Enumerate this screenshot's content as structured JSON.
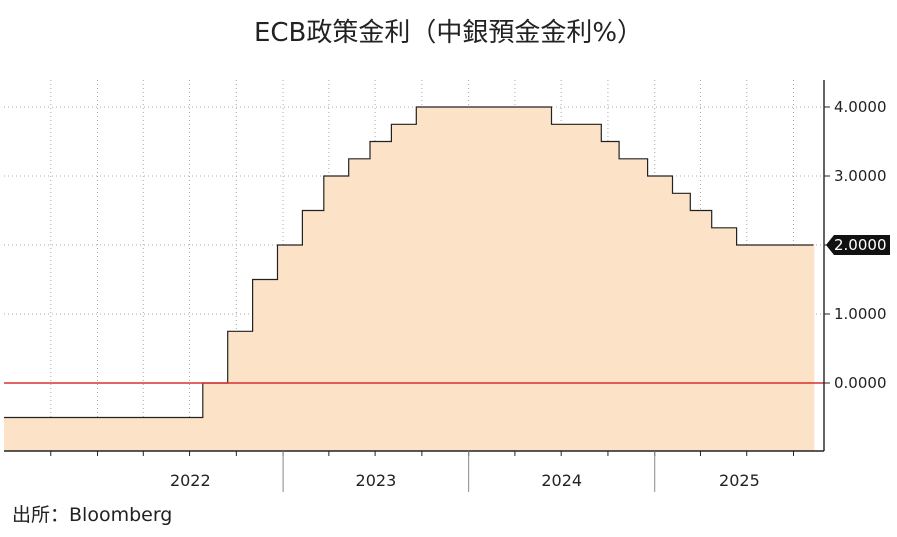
{
  "title": "ECB政策金利（中銀預金金利%）",
  "source": "出所：Bloomberg",
  "chart_data": {
    "type": "area",
    "title": "ECB政策金利（中銀預金金利%）",
    "xlabel": "",
    "ylabel": "",
    "x_range": [
      "2021-07-01",
      "2025-11-30"
    ],
    "ylim": [
      -1,
      4.5
    ],
    "y_ticks": [
      4,
      3,
      2,
      1,
      0
    ],
    "y_tick_labels": [
      "4.0000",
      "3.0000",
      "2.0000",
      "1.0000",
      "0.0000"
    ],
    "x_tick_labels": [
      "2022",
      "2023",
      "2024",
      "2025"
    ],
    "last_value_label": "2.0000",
    "axis_side": "right",
    "grid": true,
    "series": [
      {
        "step": "post",
        "x": [
          "2021-07-01",
          "2022-07-27",
          "2022-09-14",
          "2022-11-02",
          "2022-12-21",
          "2023-02-08",
          "2023-03-22",
          "2023-05-10",
          "2023-06-21",
          "2023-08-02",
          "2023-09-20",
          "2024-06-12",
          "2024-09-18",
          "2024-10-23",
          "2024-12-18",
          "2025-02-05",
          "2025-03-12",
          "2025-04-23",
          "2025-06-11",
          "2025-11-10"
        ],
        "values": [
          -0.5,
          0,
          0.75,
          1.5,
          2,
          2.5,
          3,
          3.25,
          3.5,
          3.75,
          4,
          3.75,
          3.5,
          3.25,
          3,
          2.75,
          2.5,
          2.25,
          2,
          2
        ]
      }
    ],
    "reference_line": {
      "y": 0
    },
    "colors": {
      "fill": "#fce3c7",
      "line": "#222222",
      "zero_line": "#d93030",
      "grid": "#aaaaaa"
    }
  }
}
